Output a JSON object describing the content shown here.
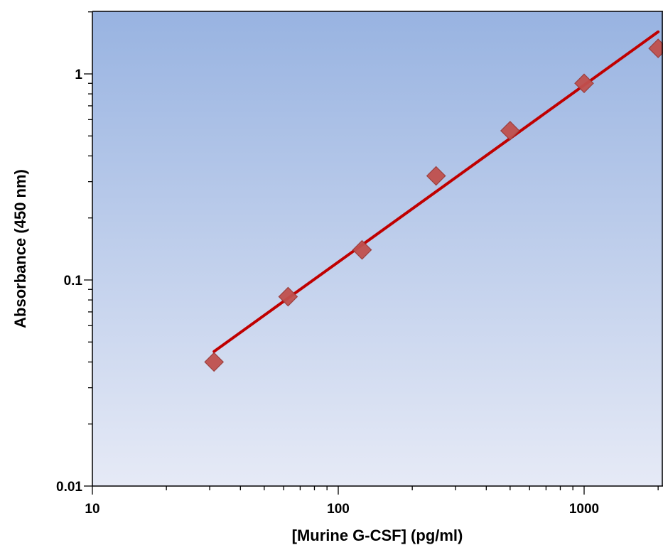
{
  "chart_data": {
    "type": "scatter",
    "xlabel": "[Murine G-CSF] (pg/ml)",
    "ylabel": "Absorbance (450 nm)",
    "x_scale": "log",
    "y_scale": "log",
    "xlim": [
      10,
      2000
    ],
    "ylim": [
      0.01,
      2
    ],
    "x_ticks": [
      {
        "value": 10,
        "label": "10"
      },
      {
        "value": 100,
        "label": "100"
      },
      {
        "value": 1000,
        "label": "1000"
      }
    ],
    "y_ticks": [
      {
        "value": 0.01,
        "label": "0.01"
      },
      {
        "value": 0.1,
        "label": "0.1"
      },
      {
        "value": 1,
        "label": "1"
      }
    ],
    "grid": false,
    "legend": "none",
    "series": [
      {
        "kind": "points",
        "marker": "diamond",
        "color": "#c0504d",
        "x": [
          31.25,
          62.5,
          125,
          250,
          500,
          1000,
          2000
        ],
        "y": [
          0.04,
          0.083,
          0.14,
          0.32,
          0.53,
          0.9,
          1.33
        ]
      },
      {
        "kind": "fit-line",
        "color": "#c00000",
        "x": [
          31.25,
          2000
        ],
        "y": [
          0.045,
          1.6
        ]
      }
    ],
    "colors": {
      "plot_bg_top": "#98b3e1",
      "plot_bg_bottom": "#e6eaf6",
      "marker": "#c0504d",
      "marker_border": "#9a3a37",
      "line": "#c00000"
    }
  }
}
